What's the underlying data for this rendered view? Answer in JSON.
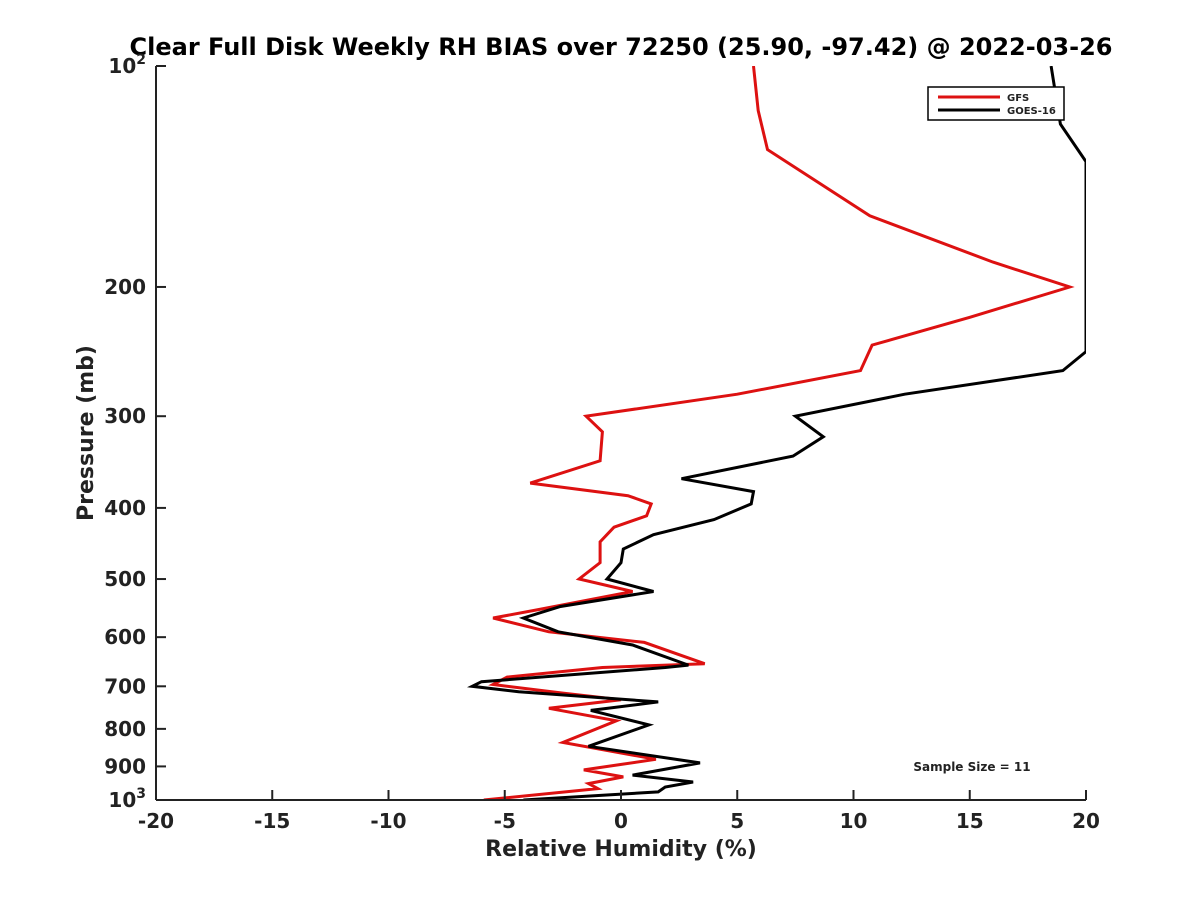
{
  "chart_data": {
    "type": "line",
    "title": "Clear Full Disk Weekly RH BIAS over 72250 (25.90, -97.42) @ 2022-03-26",
    "xlabel": "Relative Humidity (%)",
    "ylabel": "Pressure (mb)",
    "xlim": [
      -20,
      20
    ],
    "ylim": [
      1000,
      100
    ],
    "y_scale": "log",
    "y_direction": "reversed",
    "grid": false,
    "legend_position": "top-right",
    "annotation": "Sample Size = 11",
    "x_ticks": [
      {
        "value": -20,
        "label": "-20"
      },
      {
        "value": -15,
        "label": "-15"
      },
      {
        "value": -10,
        "label": "-10"
      },
      {
        "value": -5,
        "label": "-5"
      },
      {
        "value": 0,
        "label": "0"
      },
      {
        "value": 5,
        "label": "5"
      },
      {
        "value": 10,
        "label": "10"
      },
      {
        "value": 15,
        "label": "15"
      },
      {
        "value": 20,
        "label": "20"
      }
    ],
    "y_ticks": [
      {
        "value": 100,
        "label": "10",
        "sup": "2"
      },
      {
        "value": 200,
        "label": "200",
        "sup": ""
      },
      {
        "value": 300,
        "label": "300",
        "sup": ""
      },
      {
        "value": 400,
        "label": "400",
        "sup": ""
      },
      {
        "value": 500,
        "label": "500",
        "sup": ""
      },
      {
        "value": 600,
        "label": "600",
        "sup": ""
      },
      {
        "value": 700,
        "label": "700",
        "sup": ""
      },
      {
        "value": 800,
        "label": "800",
        "sup": ""
      },
      {
        "value": 900,
        "label": "900",
        "sup": ""
      },
      {
        "value": 1000,
        "label": "10",
        "sup": "3"
      }
    ],
    "series": [
      {
        "name": "GFS",
        "color": "#dd1111",
        "points": [
          [
            5.7,
            100
          ],
          [
            5.9,
            115
          ],
          [
            6.3,
            130
          ],
          [
            10.7,
            160
          ],
          [
            16.0,
            185
          ],
          [
            19.3,
            200
          ],
          [
            15.0,
            220
          ],
          [
            10.8,
            240
          ],
          [
            10.3,
            260
          ],
          [
            5.0,
            280
          ],
          [
            -1.5,
            300
          ],
          [
            -0.8,
            315
          ],
          [
            -0.9,
            345
          ],
          [
            -3.9,
            370
          ],
          [
            0.3,
            385
          ],
          [
            1.3,
            395
          ],
          [
            1.1,
            410
          ],
          [
            -0.3,
            425
          ],
          [
            -0.9,
            445
          ],
          [
            -0.9,
            475
          ],
          [
            -1.8,
            500
          ],
          [
            0.5,
            520
          ],
          [
            -3.5,
            550
          ],
          [
            -5.5,
            565
          ],
          [
            -3.1,
            590
          ],
          [
            1.0,
            610
          ],
          [
            3.6,
            652
          ],
          [
            -0.8,
            660
          ],
          [
            -4.9,
            680
          ],
          [
            -5.5,
            696
          ],
          [
            -2.5,
            715
          ],
          [
            0.0,
            730
          ],
          [
            -3.1,
            750
          ],
          [
            -0.2,
            780
          ],
          [
            -2.5,
            835
          ],
          [
            1.5,
            880
          ],
          [
            -1.6,
            910
          ],
          [
            0.1,
            930
          ],
          [
            -1.4,
            950
          ],
          [
            -1.0,
            965
          ],
          [
            -5.9,
            1000
          ]
        ]
      },
      {
        "name": "GOES-16",
        "color": "#000000",
        "points": [
          [
            18.5,
            100
          ],
          [
            18.9,
            120
          ],
          [
            20.0,
            135
          ],
          [
            20.0,
            245
          ],
          [
            19.0,
            260
          ],
          [
            12.2,
            280
          ],
          [
            7.5,
            300
          ],
          [
            8.7,
            320
          ],
          [
            7.4,
            340
          ],
          [
            2.6,
            365
          ],
          [
            5.7,
            380
          ],
          [
            5.6,
            395
          ],
          [
            4.0,
            415
          ],
          [
            1.4,
            435
          ],
          [
            0.1,
            455
          ],
          [
            0.0,
            475
          ],
          [
            -0.6,
            500
          ],
          [
            1.4,
            520
          ],
          [
            -2.6,
            545
          ],
          [
            -4.2,
            565
          ],
          [
            -2.7,
            590
          ],
          [
            0.5,
            615
          ],
          [
            2.9,
            655
          ],
          [
            1.9,
            660
          ],
          [
            -6.0,
            690
          ],
          [
            -6.4,
            700
          ],
          [
            -4.4,
            712
          ],
          [
            1.6,
            735
          ],
          [
            -1.3,
            755
          ],
          [
            1.2,
            790
          ],
          [
            -1.4,
            845
          ],
          [
            3.4,
            890
          ],
          [
            0.5,
            925
          ],
          [
            3.1,
            945
          ],
          [
            1.9,
            960
          ],
          [
            1.6,
            975
          ],
          [
            -4.2,
            1000
          ]
        ]
      }
    ]
  }
}
